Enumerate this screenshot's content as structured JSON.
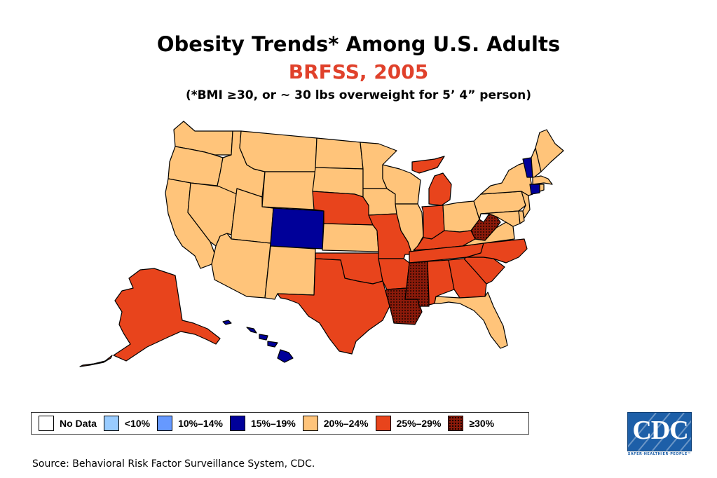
{
  "title": "Obesity Trends* Among U.S. Adults",
  "subtitle": "BRFSS, 2005",
  "note": "(*BMI ≥30, or ~ 30 lbs overweight for 5’ 4” person)",
  "colors": {
    "no_data": "#ffffff",
    "lt10": "#99ccff",
    "r10_14": "#6699ff",
    "r15_19": "#000099",
    "r20_24": "#ffc47a",
    "r25_29": "#e8441c",
    "ge30": "#8b1a0a",
    "title_accent": "#e0412b"
  },
  "legend": [
    {
      "label": "No Data",
      "key": "no_data"
    },
    {
      "label": "<10%",
      "key": "lt10"
    },
    {
      "label": "10%–14%",
      "key": "r10_14"
    },
    {
      "label": "15%–19%",
      "key": "r15_19"
    },
    {
      "label": "20%–24%",
      "key": "r20_24"
    },
    {
      "label": "25%–29%",
      "key": "r25_29"
    },
    {
      "label": "≥30%",
      "key": "ge30"
    }
  ],
  "states": {
    "washington": "r20_24",
    "oregon": "r20_24",
    "california": "r20_24",
    "nevada": "r20_24",
    "idaho": "r20_24",
    "montana": "r20_24",
    "wyoming": "r20_24",
    "utah": "r20_24",
    "arizona": "r20_24",
    "new_mexico": "r20_24",
    "colorado": "r15_19",
    "north_dakota": "r20_24",
    "south_dakota": "r20_24",
    "nebraska": "r25_29",
    "kansas": "r20_24",
    "oklahoma": "r25_29",
    "texas": "r25_29",
    "minnesota": "r20_24",
    "iowa": "r20_24",
    "missouri": "r25_29",
    "arkansas": "r25_29",
    "louisiana": "ge30",
    "wisconsin": "r20_24",
    "illinois": "r20_24",
    "michigan": "r25_29",
    "indiana": "r25_29",
    "ohio": "r20_24",
    "kentucky": "r25_29",
    "tennessee": "r25_29",
    "mississippi": "ge30",
    "alabama": "r25_29",
    "georgia": "r25_29",
    "florida": "r20_24",
    "south_carolina": "r25_29",
    "north_carolina": "r25_29",
    "virginia": "r20_24",
    "west_virginia": "ge30",
    "pennsylvania": "r20_24",
    "new_york": "r20_24",
    "new_jersey": "r20_24",
    "delaware": "r20_24",
    "maryland": "r20_24",
    "vermont": "r15_19",
    "new_hampshire": "r20_24",
    "maine": "r20_24",
    "massachusetts": "r20_24",
    "connecticut": "r15_19",
    "rhode_island": "r20_24",
    "alaska": "r25_29",
    "hawaii": "r15_19"
  },
  "source": "Source: Behavioral Risk Factor Surveillance System, CDC.",
  "logo": {
    "text": "CDC",
    "tagline": "SAFER·HEALTHIER·PEOPLE™"
  }
}
